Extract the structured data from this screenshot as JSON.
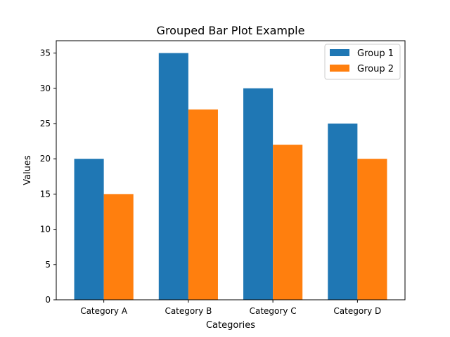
{
  "chart_data": {
    "type": "bar",
    "title": "Grouped Bar Plot Example",
    "xlabel": "Categories",
    "ylabel": "Values",
    "categories": [
      "Category A",
      "Category B",
      "Category C",
      "Category D"
    ],
    "series": [
      {
        "name": "Group 1",
        "values": [
          20,
          35,
          30,
          25
        ],
        "color": "#1f77b4"
      },
      {
        "name": "Group 2",
        "values": [
          15,
          27,
          22,
          20
        ],
        "color": "#ff7f0e"
      }
    ],
    "ylim": [
      0,
      36.75
    ],
    "yticks": [
      0,
      5,
      10,
      15,
      20,
      25,
      30,
      35
    ],
    "grid": false,
    "legend": "top-right"
  }
}
